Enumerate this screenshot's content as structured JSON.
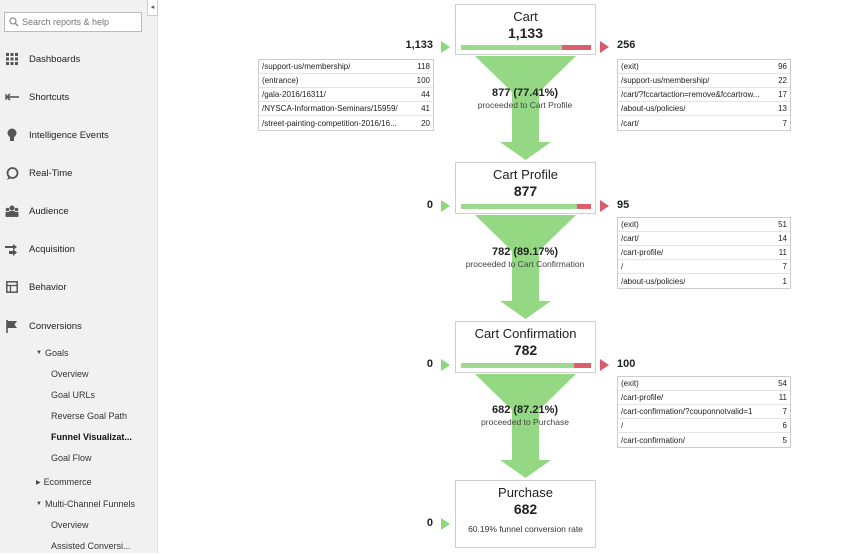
{
  "sidebar": {
    "search_placeholder": "Search reports & help",
    "collapse_glyph": "◂",
    "items": [
      {
        "label": "Dashboards",
        "icon": "grid-icon"
      },
      {
        "label": "Shortcuts",
        "icon": "shortcut-arrow-icon"
      },
      {
        "label": "Intelligence Events",
        "icon": "lightbulb-icon"
      },
      {
        "label": "Real-Time",
        "icon": "clock-bubble-icon"
      },
      {
        "label": "Audience",
        "icon": "people-icon"
      },
      {
        "label": "Acquisition",
        "icon": "acquisition-arrows-icon"
      },
      {
        "label": "Behavior",
        "icon": "behavior-window-icon"
      },
      {
        "label": "Conversions",
        "icon": "flag-icon"
      }
    ],
    "conversions_sub": {
      "goals": "Goals",
      "goal_items": [
        "Overview",
        "Goal URLs",
        "Reverse Goal Path",
        "Funnel Visualizat...",
        "Goal Flow"
      ],
      "active_item": "Funnel Visualizat...",
      "ecommerce": "Ecommerce",
      "mcf": "Multi-Channel Funnels",
      "mcf_items": [
        "Overview",
        "Assisted Conversi..."
      ]
    }
  },
  "funnel": {
    "steps": [
      {
        "title": "Cart",
        "count": "1,133",
        "entries": "1,133",
        "exits": "256",
        "entry_sources": [
          {
            "url": "/support-us/membership/",
            "count": "118"
          },
          {
            "url": "(entrance)",
            "count": "100"
          },
          {
            "url": "/gala-2016/16311/",
            "count": "44"
          },
          {
            "url": "/NYSCA-Information-Seminars/15959/",
            "count": "41"
          },
          {
            "url": "/street-painting-competition-2016/16...",
            "count": "20"
          }
        ],
        "exit_pages": [
          {
            "url": "(exit)",
            "count": "96"
          },
          {
            "url": "/support-us/membership/",
            "count": "22"
          },
          {
            "url": "/cart/?fccartaction=remove&fccartrow...",
            "count": "17"
          },
          {
            "url": "/about-us/policies/",
            "count": "13"
          },
          {
            "url": "/cart/",
            "count": "7"
          }
        ],
        "proceeded": "877 (77.41%)",
        "proceeded_to": "proceeded to Cart Profile",
        "exit_fraction": 0.226
      },
      {
        "title": "Cart Profile",
        "count": "877",
        "entries": "0",
        "exits": "95",
        "exit_pages": [
          {
            "url": "(exit)",
            "count": "51"
          },
          {
            "url": "/cart/",
            "count": "14"
          },
          {
            "url": "/cart-profile/",
            "count": "11"
          },
          {
            "url": "/",
            "count": "7"
          },
          {
            "url": "/about-us/policies/",
            "count": "1"
          }
        ],
        "proceeded": "782 (89.17%)",
        "proceeded_to": "proceeded to Cart Confirmation",
        "exit_fraction": 0.108
      },
      {
        "title": "Cart Confirmation",
        "count": "782",
        "entries": "0",
        "exits": "100",
        "exit_pages": [
          {
            "url": "(exit)",
            "count": "54"
          },
          {
            "url": "/cart-profile/",
            "count": "11"
          },
          {
            "url": "/cart-confirmation/?couponnotvalid=1",
            "count": "7"
          },
          {
            "url": "/",
            "count": "6"
          },
          {
            "url": "/cart-confirmation/",
            "count": "5"
          }
        ],
        "proceeded": "682 (87.21%)",
        "proceeded_to": "proceeded to Purchase",
        "exit_fraction": 0.128
      },
      {
        "title": "Purchase",
        "count": "682",
        "entries": "0",
        "conversion_rate": "60.19% funnel conversion rate"
      }
    ],
    "colors": {
      "bar_green": "#9fd88f",
      "bar_red": "#dd5f6e",
      "funnel_green": "#8ed67c"
    }
  }
}
